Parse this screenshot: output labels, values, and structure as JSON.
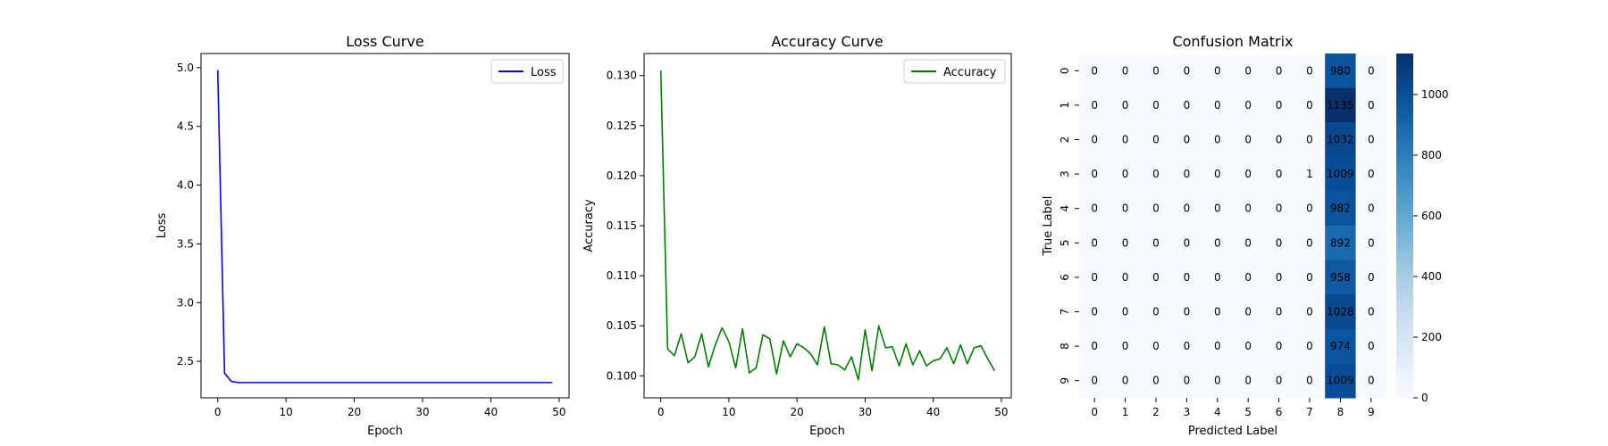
{
  "chart_data": [
    {
      "type": "line",
      "title": "Loss Curve",
      "xlabel": "Epoch",
      "ylabel": "Loss",
      "xlim": [
        -2.45,
        51.45
      ],
      "ylim": [
        2.19,
        5.12
      ],
      "xticks": [
        0,
        10,
        20,
        30,
        40,
        50
      ],
      "yticks": [
        2.5,
        3.0,
        3.5,
        4.0,
        4.5,
        5.0
      ],
      "ytick_labels": [
        "2.5",
        "3.0",
        "3.5",
        "4.0",
        "4.5",
        "5.0"
      ],
      "legend": "top-right",
      "grid": false,
      "series": [
        {
          "name": "Loss",
          "color": "#0000ff",
          "x": [
            0,
            1,
            2,
            3,
            4,
            5,
            6,
            7,
            8,
            9,
            10,
            11,
            12,
            13,
            14,
            15,
            16,
            17,
            18,
            19,
            20,
            21,
            22,
            23,
            24,
            25,
            26,
            27,
            28,
            29,
            30,
            31,
            32,
            33,
            34,
            35,
            36,
            37,
            38,
            39,
            40,
            41,
            42,
            43,
            44,
            45,
            46,
            47,
            48,
            49
          ],
          "values": [
            4.98,
            2.4,
            2.33,
            2.32,
            2.32,
            2.32,
            2.32,
            2.32,
            2.32,
            2.32,
            2.32,
            2.32,
            2.32,
            2.32,
            2.32,
            2.32,
            2.32,
            2.32,
            2.32,
            2.32,
            2.32,
            2.32,
            2.32,
            2.32,
            2.32,
            2.32,
            2.32,
            2.32,
            2.32,
            2.32,
            2.32,
            2.32,
            2.32,
            2.32,
            2.32,
            2.32,
            2.32,
            2.32,
            2.32,
            2.32,
            2.32,
            2.32,
            2.32,
            2.32,
            2.32,
            2.32,
            2.32,
            2.32,
            2.32,
            2.32
          ]
        }
      ]
    },
    {
      "type": "line",
      "title": "Accuracy Curve",
      "xlabel": "Epoch",
      "ylabel": "Accuracy",
      "xlim": [
        -2.45,
        51.45
      ],
      "ylim": [
        0.0978,
        0.1322
      ],
      "xticks": [
        0,
        10,
        20,
        30,
        40,
        50
      ],
      "yticks": [
        0.1,
        0.105,
        0.11,
        0.115,
        0.12,
        0.125,
        0.13
      ],
      "ytick_labels": [
        "0.100",
        "0.105",
        "0.110",
        "0.115",
        "0.120",
        "0.125",
        "0.130"
      ],
      "legend": "top-right",
      "grid": false,
      "series": [
        {
          "name": "Accuracy",
          "color": "#008000",
          "x": [
            0,
            1,
            2,
            3,
            4,
            5,
            6,
            7,
            8,
            9,
            10,
            11,
            12,
            13,
            14,
            15,
            16,
            17,
            18,
            19,
            20,
            21,
            22,
            23,
            24,
            25,
            26,
            27,
            28,
            29,
            30,
            31,
            32,
            33,
            34,
            35,
            36,
            37,
            38,
            39,
            40,
            41,
            42,
            43,
            44,
            45,
            46,
            47,
            48,
            49
          ],
          "values": [
            0.1305,
            0.1027,
            0.102,
            0.1042,
            0.1013,
            0.1019,
            0.1042,
            0.1009,
            0.1031,
            0.1048,
            0.1034,
            0.1008,
            0.1047,
            0.1003,
            0.1008,
            0.1041,
            0.1037,
            0.1002,
            0.1035,
            0.1019,
            0.1032,
            0.1028,
            0.1022,
            0.1011,
            0.1049,
            0.1012,
            0.1011,
            0.1006,
            0.1019,
            0.0996,
            0.1046,
            0.1005,
            0.105,
            0.1028,
            0.1029,
            0.101,
            0.1032,
            0.1011,
            0.1025,
            0.101,
            0.1015,
            0.1017,
            0.1028,
            0.1012,
            0.1031,
            0.1012,
            0.1028,
            0.103,
            0.1017,
            0.1005
          ]
        }
      ]
    },
    {
      "type": "heatmap",
      "title": "Confusion Matrix",
      "xlabel": "Predicted Label",
      "ylabel": "True Label",
      "x_categories": [
        "0",
        "1",
        "2",
        "3",
        "4",
        "5",
        "6",
        "7",
        "8",
        "9"
      ],
      "y_categories": [
        "0",
        "1",
        "2",
        "3",
        "4",
        "5",
        "6",
        "7",
        "8",
        "9"
      ],
      "values": [
        [
          0,
          0,
          0,
          0,
          0,
          0,
          0,
          0,
          980,
          0
        ],
        [
          0,
          0,
          0,
          0,
          0,
          0,
          0,
          0,
          1135,
          0
        ],
        [
          0,
          0,
          0,
          0,
          0,
          0,
          0,
          0,
          1032,
          0
        ],
        [
          0,
          0,
          0,
          0,
          0,
          0,
          0,
          1,
          1009,
          0
        ],
        [
          0,
          0,
          0,
          0,
          0,
          0,
          0,
          0,
          982,
          0
        ],
        [
          0,
          0,
          0,
          0,
          0,
          0,
          0,
          0,
          892,
          0
        ],
        [
          0,
          0,
          0,
          0,
          0,
          0,
          0,
          0,
          958,
          0
        ],
        [
          0,
          0,
          0,
          0,
          0,
          0,
          0,
          0,
          1028,
          0
        ],
        [
          0,
          0,
          0,
          0,
          0,
          0,
          0,
          0,
          974,
          0
        ],
        [
          0,
          0,
          0,
          0,
          0,
          0,
          0,
          0,
          1009,
          0
        ]
      ],
      "colormap": "Blues",
      "colorbar_range": [
        0,
        1135
      ],
      "colorbar_ticks": [
        0,
        200,
        400,
        600,
        800,
        1000
      ]
    }
  ]
}
